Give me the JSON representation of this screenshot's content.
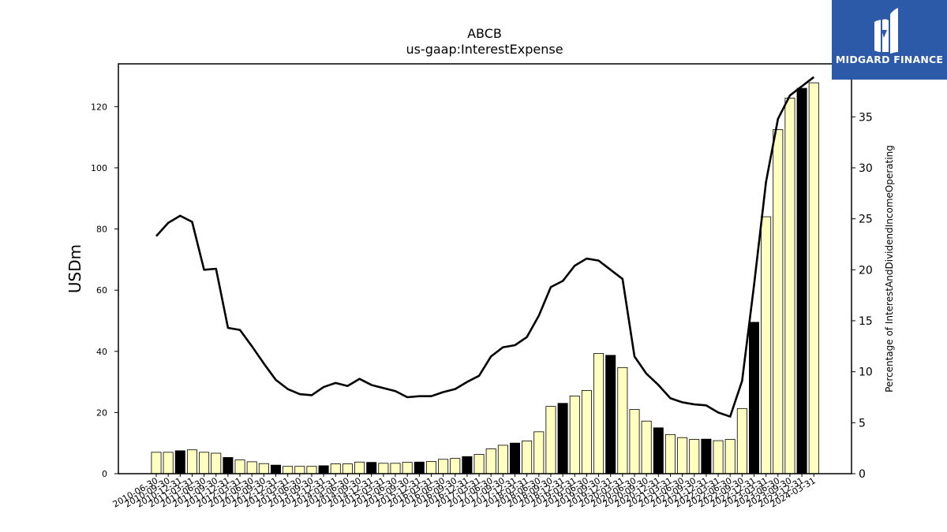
{
  "chart_data": {
    "type": "bar",
    "title": "ABCB",
    "subtitle": "us-gaap:InterestExpense",
    "ylabel": "USDm",
    "y2label": "Percentage of InterestAndDividendIncomeOperating",
    "ylim": [
      0,
      134
    ],
    "y2lim": [
      0,
      40.2
    ],
    "yticks": [
      0,
      20,
      40,
      60,
      80,
      100,
      120
    ],
    "y2ticks": [
      0,
      5,
      10,
      15,
      20,
      25,
      30,
      35
    ],
    "grid": false,
    "colors": {
      "bar_quarter": "#ffffc0",
      "bar_year_end": "#000000",
      "line": "#000000"
    },
    "categories": [
      "2010-06-30",
      "2010-09-30",
      "2010-12-31",
      "2011-03-31",
      "2011-06-30",
      "2011-09-30",
      "2011-12-31",
      "2012-03-31",
      "2012-06-30",
      "2012-09-30",
      "2012-12-31",
      "2013-03-31",
      "2013-06-30",
      "2013-09-30",
      "2013-12-31",
      "2014-03-31",
      "2014-06-30",
      "2014-09-30",
      "2014-12-31",
      "2015-03-31",
      "2015-06-30",
      "2015-09-30",
      "2015-12-31",
      "2016-03-31",
      "2016-06-30",
      "2016-09-30",
      "2016-12-31",
      "2017-03-31",
      "2017-06-30",
      "2017-09-30",
      "2017-12-31",
      "2018-03-31",
      "2018-06-30",
      "2018-09-30",
      "2018-12-31",
      "2019-03-31",
      "2019-06-30",
      "2019-09-30",
      "2019-12-31",
      "2020-03-31",
      "2020-06-30",
      "2020-09-30",
      "2020-12-31",
      "2021-03-31",
      "2021-06-30",
      "2021-09-30",
      "2021-12-31",
      "2022-03-31",
      "2022-06-30",
      "2022-09-30",
      "2022-12-31",
      "2023-03-31",
      "2023-06-30",
      "2023-09-30",
      "2023-12-31",
      "2024-03-31"
    ],
    "xtick_labels": [
      "2010-06-30",
      "2010-09-30",
      "2010-12-31",
      "2011-03-31",
      "2011-06-30",
      "2011-09-30",
      "2011-12-31",
      "2012-03-31",
      "2012-06-30",
      "2012-09-30",
      "2012-12-31",
      "2013-03-31",
      "2013-06-30",
      "2013-09-30",
      "2013-12-31",
      "2014-03-31",
      "2014-06-30",
      "2014-09-30",
      "2014-12-31",
      "2015-03-31",
      "2015-06-30",
      "2015-09-30",
      "2015-12-31",
      "2016-03-31",
      "2016-06-30",
      "2016-09-30",
      "2016-12-31",
      "2017-03-31",
      "2017-06-30",
      "2017-09-30",
      "2017-12-31",
      "2018-03-31",
      "2018-06-30",
      "2018-09-30",
      "2018-12-31",
      "2019-03-31",
      "2019-06-30",
      "2019-09-30",
      "2019-12-31",
      "2020-03-31",
      "2020-06-30",
      "2020-09-30",
      "2020-12-31",
      "2021-03-31",
      "2021-06-30",
      "2021-09-30",
      "2021-12-31",
      "2022-03-31",
      "2022-06-30",
      "2022-09-30",
      "2022-12-31",
      "2023-03-31",
      "2023-06-30",
      "2023-09-30",
      "2023-12-31",
      "2024-03-31"
    ],
    "series": [
      {
        "type": "bar",
        "axis": "left",
        "values": [
          7.0,
          7.0,
          7.5,
          7.8,
          7.0,
          6.7,
          5.3,
          4.5,
          3.9,
          3.3,
          2.8,
          2.4,
          2.4,
          2.4,
          2.6,
          3.2,
          3.2,
          3.8,
          3.7,
          3.4,
          3.4,
          3.7,
          3.8,
          4.0,
          4.7,
          5.0,
          5.6,
          6.3,
          8.1,
          9.3,
          10.0,
          10.7,
          13.7,
          22.0,
          23.0,
          25.4,
          27.2,
          39.3,
          38.7,
          34.7,
          21.0,
          17.2,
          15.0,
          12.8,
          11.8,
          11.2,
          11.3,
          10.8,
          11.2,
          21.3,
          49.5,
          84.0,
          112.5,
          122.8,
          126.0,
          127.8
        ],
        "year_end": [
          false,
          false,
          true,
          false,
          false,
          false,
          true,
          false,
          false,
          false,
          true,
          false,
          false,
          false,
          true,
          false,
          false,
          false,
          true,
          false,
          false,
          false,
          true,
          false,
          false,
          false,
          true,
          false,
          false,
          false,
          true,
          false,
          false,
          false,
          true,
          false,
          false,
          false,
          true,
          false,
          false,
          false,
          true,
          false,
          false,
          false,
          true,
          false,
          false,
          false,
          true,
          false,
          false,
          false,
          true,
          false
        ]
      },
      {
        "type": "line",
        "axis": "right",
        "values": [
          23.3,
          24.6,
          25.3,
          24.7,
          20.0,
          20.1,
          14.3,
          14.1,
          12.5,
          10.8,
          9.2,
          8.3,
          7.8,
          7.7,
          8.5,
          8.9,
          8.6,
          9.3,
          8.7,
          8.4,
          8.1,
          7.5,
          7.6,
          7.6,
          8.0,
          8.3,
          9.0,
          9.6,
          11.5,
          12.4,
          12.6,
          13.4,
          15.5,
          18.3,
          18.9,
          20.4,
          21.1,
          20.9,
          20.0,
          19.1,
          11.5,
          9.8,
          8.7,
          7.4,
          7.0,
          6.8,
          6.7,
          6.0,
          5.6,
          9.1,
          18.5,
          28.6,
          34.8,
          37.1,
          38.0,
          38.9
        ]
      }
    ]
  },
  "logo": {
    "text": "MIDGARD FINANCE"
  }
}
